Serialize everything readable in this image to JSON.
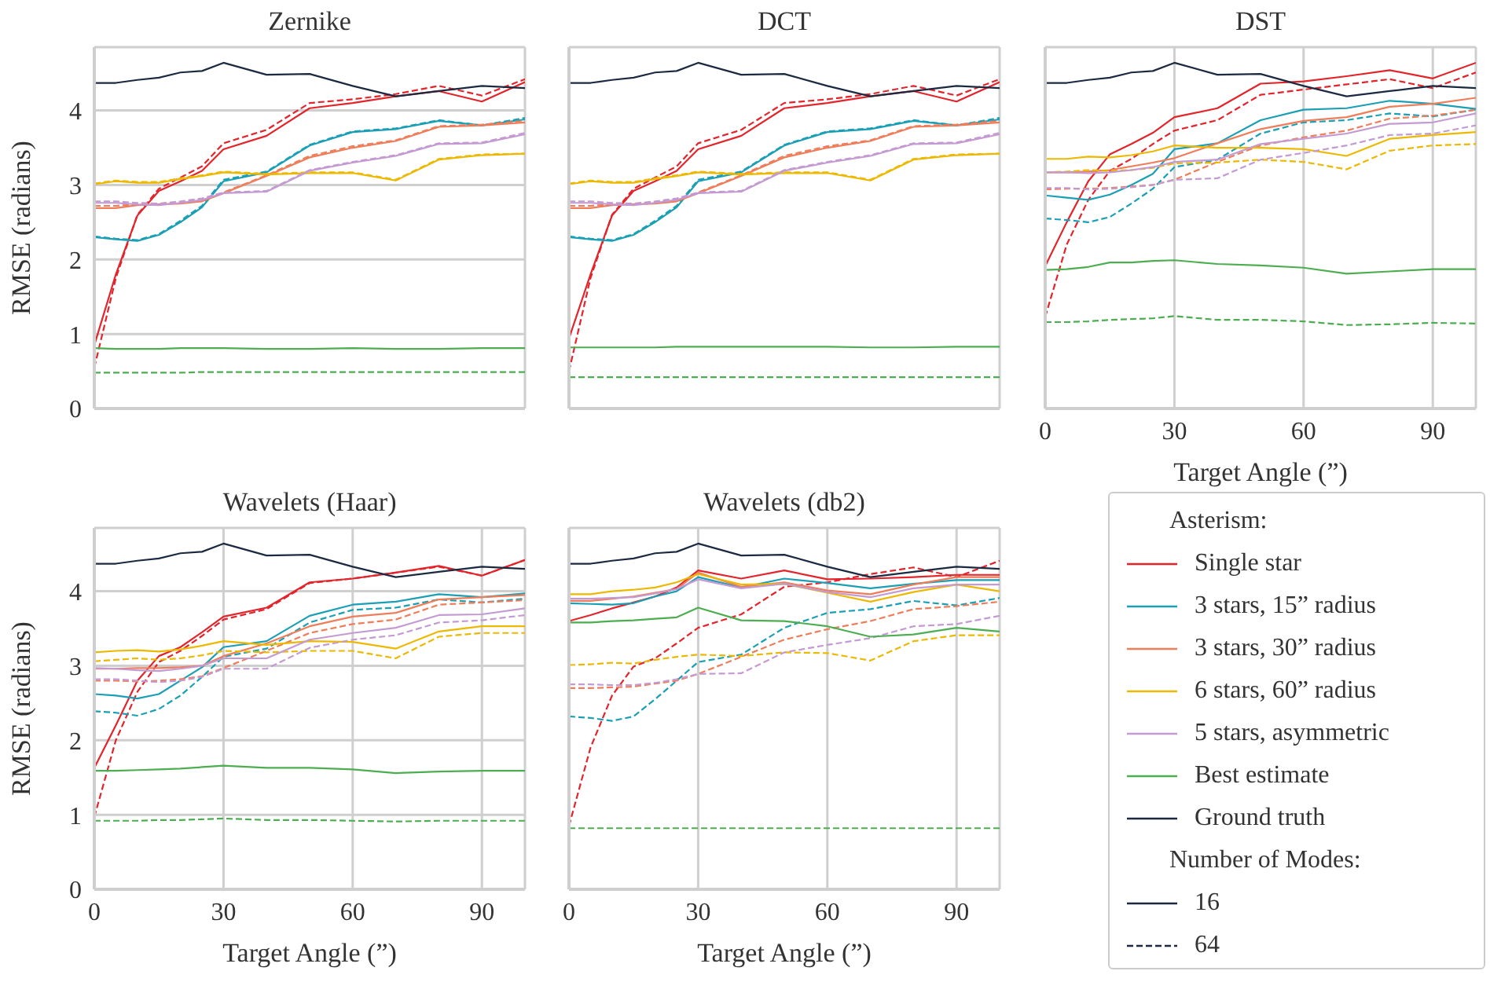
{
  "chart_data": [
    {
      "type": "line",
      "title": "Zernike",
      "ylabel": "RMSE (radians)",
      "x": [
        0,
        5,
        10,
        15,
        20,
        25,
        30,
        40,
        50,
        60,
        70,
        80,
        90,
        100
      ],
      "xlim": [
        0,
        100
      ],
      "xticks": [
        0,
        30,
        60,
        90
      ],
      "ylim": [
        0,
        4.85
      ],
      "yticks": [
        0,
        1,
        2,
        3,
        4
      ],
      "grid": true,
      "tick_labels": "y",
      "series": [
        {
          "color": "#e3242b",
          "line_style": "solid",
          "values": [
            0.85,
            1.8,
            2.59,
            2.92,
            3.05,
            3.19,
            3.48,
            3.66,
            4.03,
            4.1,
            4.19,
            4.26,
            4.12,
            4.38
          ]
        },
        {
          "color": "#e3242b",
          "line_style": "dashed",
          "values": [
            0.55,
            1.75,
            2.6,
            2.95,
            3.1,
            3.25,
            3.56,
            3.74,
            4.1,
            4.15,
            4.22,
            4.33,
            4.2,
            4.42
          ]
        },
        {
          "color": "#1a9fb5",
          "line_style": "solid",
          "values": [
            2.3,
            2.27,
            2.25,
            2.33,
            2.5,
            2.7,
            3.05,
            3.17,
            3.53,
            3.71,
            3.75,
            3.86,
            3.8,
            3.88
          ]
        },
        {
          "color": "#1a9fb5",
          "line_style": "dashed",
          "values": [
            2.31,
            2.28,
            2.26,
            2.34,
            2.52,
            2.72,
            3.07,
            3.18,
            3.54,
            3.72,
            3.76,
            3.87,
            3.8,
            3.9
          ]
        },
        {
          "color": "#ef7d5a",
          "line_style": "solid",
          "values": [
            2.69,
            2.69,
            2.73,
            2.74,
            2.75,
            2.78,
            2.89,
            3.12,
            3.37,
            3.5,
            3.59,
            3.78,
            3.8,
            3.84
          ]
        },
        {
          "color": "#ef7d5a",
          "line_style": "dashed",
          "values": [
            2.72,
            2.72,
            2.74,
            2.75,
            2.77,
            2.8,
            2.9,
            3.13,
            3.39,
            3.52,
            3.6,
            3.79,
            3.81,
            3.86
          ]
        },
        {
          "color": "#ecb800",
          "line_style": "solid",
          "values": [
            3.01,
            3.05,
            3.03,
            3.03,
            3.08,
            3.12,
            3.17,
            3.14,
            3.16,
            3.16,
            3.06,
            3.34,
            3.4,
            3.42
          ]
        },
        {
          "color": "#ecb800",
          "line_style": "dashed",
          "values": [
            3.02,
            3.06,
            3.04,
            3.04,
            3.09,
            3.13,
            3.18,
            3.15,
            3.17,
            3.17,
            3.07,
            3.35,
            3.41,
            3.42
          ]
        },
        {
          "color": "#c49ad2",
          "line_style": "solid",
          "values": [
            2.76,
            2.76,
            2.74,
            2.73,
            2.76,
            2.8,
            2.89,
            2.91,
            3.19,
            3.3,
            3.39,
            3.55,
            3.56,
            3.68
          ]
        },
        {
          "color": "#c49ad2",
          "line_style": "dashed",
          "values": [
            2.78,
            2.78,
            2.76,
            2.75,
            2.78,
            2.82,
            2.9,
            2.92,
            3.2,
            3.31,
            3.4,
            3.56,
            3.57,
            3.7
          ]
        },
        {
          "color": "#4cae50",
          "line_style": "solid",
          "values": [
            0.81,
            0.8,
            0.8,
            0.8,
            0.81,
            0.81,
            0.81,
            0.8,
            0.8,
            0.81,
            0.8,
            0.8,
            0.81,
            0.81
          ]
        },
        {
          "color": "#4cae50",
          "line_style": "dashed",
          "values": [
            0.48,
            0.48,
            0.48,
            0.48,
            0.48,
            0.49,
            0.49,
            0.49,
            0.49,
            0.49,
            0.49,
            0.49,
            0.49,
            0.49
          ]
        },
        {
          "color": "#1b2a41",
          "line_style": "solid",
          "values": [
            4.37,
            4.37,
            4.41,
            4.44,
            4.51,
            4.53,
            4.64,
            4.48,
            4.49,
            4.33,
            4.19,
            4.26,
            4.33,
            4.3
          ]
        }
      ]
    },
    {
      "type": "line",
      "title": "DCT",
      "x": [
        0,
        5,
        10,
        15,
        20,
        25,
        30,
        40,
        50,
        60,
        70,
        80,
        90,
        100
      ],
      "xlim": [
        0,
        100
      ],
      "xticks": [
        0,
        30,
        60,
        90
      ],
      "ylim": [
        0,
        4.85
      ],
      "yticks": [
        0,
        1,
        2,
        3,
        4
      ],
      "grid": true,
      "tick_labels": false,
      "series": [
        {
          "color": "#e3242b",
          "line_style": "solid",
          "values": [
            0.94,
            1.8,
            2.59,
            2.92,
            3.05,
            3.19,
            3.48,
            3.66,
            4.03,
            4.1,
            4.19,
            4.26,
            4.12,
            4.38
          ]
        },
        {
          "color": "#e3242b",
          "line_style": "dashed",
          "values": [
            0.5,
            1.75,
            2.6,
            2.95,
            3.1,
            3.25,
            3.56,
            3.74,
            4.1,
            4.15,
            4.22,
            4.33,
            4.2,
            4.42
          ]
        },
        {
          "color": "#1a9fb5",
          "line_style": "solid",
          "values": [
            2.3,
            2.27,
            2.25,
            2.33,
            2.5,
            2.7,
            3.05,
            3.17,
            3.53,
            3.71,
            3.75,
            3.86,
            3.8,
            3.88
          ]
        },
        {
          "color": "#1a9fb5",
          "line_style": "dashed",
          "values": [
            2.31,
            2.28,
            2.26,
            2.34,
            2.52,
            2.72,
            3.07,
            3.18,
            3.54,
            3.72,
            3.76,
            3.87,
            3.8,
            3.9
          ]
        },
        {
          "color": "#ef7d5a",
          "line_style": "solid",
          "values": [
            2.69,
            2.69,
            2.73,
            2.74,
            2.75,
            2.78,
            2.89,
            3.12,
            3.37,
            3.5,
            3.59,
            3.78,
            3.8,
            3.84
          ]
        },
        {
          "color": "#ef7d5a",
          "line_style": "dashed",
          "values": [
            2.72,
            2.72,
            2.74,
            2.75,
            2.77,
            2.8,
            2.9,
            3.13,
            3.39,
            3.52,
            3.6,
            3.79,
            3.81,
            3.86
          ]
        },
        {
          "color": "#ecb800",
          "line_style": "solid",
          "values": [
            3.01,
            3.05,
            3.03,
            3.03,
            3.08,
            3.12,
            3.17,
            3.14,
            3.16,
            3.16,
            3.06,
            3.34,
            3.4,
            3.42
          ]
        },
        {
          "color": "#ecb800",
          "line_style": "dashed",
          "values": [
            3.02,
            3.06,
            3.04,
            3.04,
            3.09,
            3.13,
            3.18,
            3.15,
            3.17,
            3.17,
            3.07,
            3.35,
            3.41,
            3.42
          ]
        },
        {
          "color": "#c49ad2",
          "line_style": "solid",
          "values": [
            2.76,
            2.76,
            2.74,
            2.73,
            2.76,
            2.8,
            2.89,
            2.91,
            3.19,
            3.3,
            3.39,
            3.55,
            3.56,
            3.68
          ]
        },
        {
          "color": "#c49ad2",
          "line_style": "dashed",
          "values": [
            2.78,
            2.78,
            2.76,
            2.75,
            2.78,
            2.82,
            2.9,
            2.92,
            3.2,
            3.31,
            3.4,
            3.56,
            3.57,
            3.7
          ]
        },
        {
          "color": "#4cae50",
          "line_style": "solid",
          "values": [
            0.82,
            0.82,
            0.82,
            0.82,
            0.82,
            0.83,
            0.83,
            0.83,
            0.83,
            0.83,
            0.82,
            0.82,
            0.83,
            0.83
          ]
        },
        {
          "color": "#4cae50",
          "line_style": "dashed",
          "values": [
            0.42,
            0.42,
            0.42,
            0.42,
            0.42,
            0.42,
            0.42,
            0.42,
            0.42,
            0.42,
            0.42,
            0.42,
            0.42,
            0.42
          ]
        },
        {
          "color": "#1b2a41",
          "line_style": "solid",
          "values": [
            4.37,
            4.37,
            4.41,
            4.44,
            4.51,
            4.53,
            4.64,
            4.48,
            4.49,
            4.33,
            4.19,
            4.26,
            4.33,
            4.3
          ]
        }
      ]
    },
    {
      "type": "line",
      "title": "DST",
      "xlabel": "Target Angle (”)",
      "x": [
        0,
        5,
        10,
        15,
        20,
        25,
        30,
        40,
        50,
        60,
        70,
        80,
        90,
        100
      ],
      "xlim": [
        0,
        100
      ],
      "xticks": [
        0,
        30,
        60,
        90
      ],
      "ylim": [
        0,
        4.85
      ],
      "yticks": [
        0,
        1,
        2,
        3,
        4
      ],
      "grid": true,
      "tick_labels": "x",
      "series": [
        {
          "color": "#e3242b",
          "line_style": "solid",
          "values": [
            1.91,
            2.5,
            3.05,
            3.41,
            3.55,
            3.7,
            3.91,
            4.03,
            4.36,
            4.39,
            4.46,
            4.54,
            4.43,
            4.64
          ]
        },
        {
          "color": "#e3242b",
          "line_style": "dashed",
          "values": [
            1.23,
            2.2,
            2.8,
            3.19,
            3.35,
            3.55,
            3.73,
            3.87,
            4.21,
            4.28,
            4.35,
            4.42,
            4.3,
            4.51
          ]
        },
        {
          "color": "#1a9fb5",
          "line_style": "solid",
          "values": [
            2.86,
            2.83,
            2.8,
            2.87,
            3.0,
            3.15,
            3.48,
            3.56,
            3.87,
            4.01,
            4.03,
            4.13,
            4.09,
            4.02
          ]
        },
        {
          "color": "#1a9fb5",
          "line_style": "dashed",
          "values": [
            2.55,
            2.53,
            2.5,
            2.57,
            2.75,
            2.95,
            3.24,
            3.34,
            3.69,
            3.84,
            3.87,
            3.96,
            3.92,
            4.01
          ]
        },
        {
          "color": "#ef7d5a",
          "line_style": "solid",
          "values": [
            3.17,
            3.17,
            3.18,
            3.2,
            3.25,
            3.3,
            3.36,
            3.56,
            3.75,
            3.86,
            3.91,
            4.05,
            4.09,
            4.17
          ]
        },
        {
          "color": "#ef7d5a",
          "line_style": "dashed",
          "values": [
            2.94,
            2.95,
            2.95,
            2.96,
            2.98,
            3.0,
            3.07,
            3.31,
            3.53,
            3.64,
            3.73,
            3.89,
            3.93,
            4.01
          ]
        },
        {
          "color": "#ecb800",
          "line_style": "solid",
          "values": [
            3.35,
            3.35,
            3.38,
            3.37,
            3.4,
            3.45,
            3.53,
            3.5,
            3.5,
            3.48,
            3.39,
            3.62,
            3.67,
            3.71
          ]
        },
        {
          "color": "#ecb800",
          "line_style": "dashed",
          "values": [
            3.17,
            3.18,
            3.2,
            3.19,
            3.2,
            3.23,
            3.29,
            3.3,
            3.34,
            3.31,
            3.21,
            3.46,
            3.53,
            3.55
          ]
        },
        {
          "color": "#c49ad2",
          "line_style": "solid",
          "values": [
            3.17,
            3.17,
            3.16,
            3.17,
            3.2,
            3.24,
            3.31,
            3.34,
            3.55,
            3.62,
            3.69,
            3.82,
            3.84,
            3.96
          ]
        },
        {
          "color": "#c49ad2",
          "line_style": "dashed",
          "values": [
            2.96,
            2.96,
            2.94,
            2.95,
            2.97,
            3.0,
            3.07,
            3.09,
            3.34,
            3.43,
            3.53,
            3.67,
            3.69,
            3.8
          ]
        },
        {
          "color": "#4cae50",
          "line_style": "solid",
          "values": [
            1.86,
            1.87,
            1.9,
            1.96,
            1.96,
            1.98,
            1.99,
            1.94,
            1.92,
            1.89,
            1.81,
            1.84,
            1.87,
            1.87
          ]
        },
        {
          "color": "#4cae50",
          "line_style": "dashed",
          "values": [
            1.16,
            1.16,
            1.17,
            1.19,
            1.2,
            1.21,
            1.24,
            1.19,
            1.19,
            1.17,
            1.12,
            1.13,
            1.15,
            1.14
          ]
        },
        {
          "color": "#1b2a41",
          "line_style": "solid",
          "values": [
            4.37,
            4.37,
            4.41,
            4.44,
            4.51,
            4.53,
            4.64,
            4.48,
            4.49,
            4.33,
            4.19,
            4.26,
            4.33,
            4.3
          ]
        }
      ]
    },
    {
      "type": "line",
      "title": "Wavelets (Haar)",
      "xlabel": "Target Angle (”)",
      "ylabel": "RMSE (radians)",
      "x": [
        0,
        5,
        10,
        15,
        20,
        25,
        30,
        40,
        50,
        60,
        70,
        80,
        90,
        100
      ],
      "xlim": [
        0,
        100
      ],
      "xticks": [
        0,
        30,
        60,
        90
      ],
      "ylim": [
        0,
        4.85
      ],
      "yticks": [
        0,
        1,
        2,
        3,
        4
      ],
      "grid": true,
      "series": [
        {
          "color": "#e3242b",
          "line_style": "solid",
          "values": [
            1.63,
            2.2,
            2.8,
            3.13,
            3.25,
            3.45,
            3.66,
            3.78,
            4.12,
            4.17,
            4.25,
            4.34,
            4.21,
            4.42
          ]
        },
        {
          "color": "#e3242b",
          "line_style": "dashed",
          "values": [
            0.97,
            2.0,
            2.65,
            3.05,
            3.2,
            3.4,
            3.62,
            3.76,
            4.11,
            4.17,
            4.25,
            4.33,
            4.21,
            4.42
          ]
        },
        {
          "color": "#1a9fb5",
          "line_style": "solid",
          "values": [
            2.62,
            2.6,
            2.56,
            2.62,
            2.8,
            2.98,
            3.25,
            3.33,
            3.67,
            3.82,
            3.86,
            3.96,
            3.92,
            3.97
          ]
        },
        {
          "color": "#1a9fb5",
          "line_style": "dashed",
          "values": [
            2.39,
            2.37,
            2.33,
            2.42,
            2.6,
            2.85,
            3.12,
            3.23,
            3.58,
            3.75,
            3.78,
            3.89,
            3.85,
            3.9
          ]
        },
        {
          "color": "#ef7d5a",
          "line_style": "solid",
          "values": [
            2.96,
            2.96,
            2.97,
            2.97,
            2.98,
            3.0,
            3.13,
            3.3,
            3.53,
            3.66,
            3.71,
            3.89,
            3.92,
            3.95
          ]
        },
        {
          "color": "#ef7d5a",
          "line_style": "dashed",
          "values": [
            2.8,
            2.8,
            2.79,
            2.8,
            2.82,
            2.86,
            2.97,
            3.2,
            3.44,
            3.56,
            3.62,
            3.82,
            3.85,
            3.88
          ]
        },
        {
          "color": "#ecb800",
          "line_style": "solid",
          "values": [
            3.18,
            3.2,
            3.21,
            3.19,
            3.22,
            3.27,
            3.33,
            3.28,
            3.33,
            3.32,
            3.23,
            3.46,
            3.53,
            3.53
          ]
        },
        {
          "color": "#ecb800",
          "line_style": "dashed",
          "values": [
            3.06,
            3.08,
            3.1,
            3.08,
            3.1,
            3.14,
            3.2,
            3.18,
            3.2,
            3.2,
            3.1,
            3.39,
            3.44,
            3.44
          ]
        },
        {
          "color": "#c49ad2",
          "line_style": "solid",
          "values": [
            2.97,
            2.96,
            2.94,
            2.93,
            2.96,
            3.0,
            3.1,
            3.1,
            3.35,
            3.44,
            3.51,
            3.68,
            3.69,
            3.77
          ]
        },
        {
          "color": "#c49ad2",
          "line_style": "dashed",
          "values": [
            2.82,
            2.82,
            2.8,
            2.78,
            2.8,
            2.85,
            2.96,
            2.96,
            3.24,
            3.35,
            3.41,
            3.58,
            3.61,
            3.68
          ]
        },
        {
          "color": "#4cae50",
          "line_style": "solid",
          "values": [
            1.59,
            1.59,
            1.6,
            1.61,
            1.62,
            1.64,
            1.66,
            1.63,
            1.63,
            1.61,
            1.56,
            1.58,
            1.59,
            1.59
          ]
        },
        {
          "color": "#4cae50",
          "line_style": "dashed",
          "values": [
            0.92,
            0.92,
            0.92,
            0.93,
            0.93,
            0.94,
            0.95,
            0.93,
            0.93,
            0.92,
            0.91,
            0.92,
            0.92,
            0.92
          ]
        },
        {
          "color": "#1b2a41",
          "line_style": "solid",
          "values": [
            4.37,
            4.37,
            4.41,
            4.44,
            4.51,
            4.53,
            4.64,
            4.48,
            4.49,
            4.33,
            4.19,
            4.26,
            4.33,
            4.3
          ]
        }
      ]
    },
    {
      "type": "line",
      "title": "Wavelets (db2)",
      "xlabel": "Target Angle (”)",
      "x": [
        0,
        5,
        10,
        15,
        20,
        25,
        30,
        40,
        50,
        60,
        70,
        80,
        90,
        100
      ],
      "xlim": [
        0,
        100
      ],
      "xticks": [
        0,
        30,
        60,
        90
      ],
      "ylim": [
        0,
        4.85
      ],
      "yticks": [
        0,
        1,
        2,
        3,
        4
      ],
      "grid": true,
      "tick_labels": "x",
      "legend": "right",
      "legend_title": "Asterism:",
      "annotations": [
        "Number of Modes:",
        "16",
        "64"
      ],
      "series": [
        {
          "name": "Single star",
          "color": "#e3242b",
          "line_style": "solid",
          "values": [
            3.6,
            3.68,
            3.77,
            3.85,
            3.93,
            4.05,
            4.28,
            4.17,
            4.28,
            4.16,
            4.17,
            4.19,
            4.22,
            4.22
          ]
        },
        {
          "color": "#e3242b",
          "line_style": "dashed",
          "values": [
            0.85,
            1.9,
            2.6,
            2.99,
            3.1,
            3.3,
            3.51,
            3.69,
            4.06,
            4.12,
            4.23,
            4.32,
            4.19,
            4.41
          ]
        },
        {
          "name": "3 stars, 15” radius",
          "color": "#1a9fb5",
          "line_style": "solid",
          "values": [
            3.84,
            3.83,
            3.82,
            3.84,
            3.93,
            4.0,
            4.19,
            4.05,
            4.17,
            4.11,
            4.04,
            4.1,
            4.15,
            4.15
          ]
        },
        {
          "color": "#1a9fb5",
          "line_style": "dashed",
          "values": [
            2.32,
            2.3,
            2.26,
            2.32,
            2.55,
            2.8,
            3.05,
            3.15,
            3.51,
            3.71,
            3.76,
            3.87,
            3.81,
            3.91
          ]
        },
        {
          "name": "3 stars, 30” radius",
          "color": "#ef7d5a",
          "line_style": "solid",
          "values": [
            3.87,
            3.87,
            3.9,
            3.93,
            3.98,
            4.03,
            4.25,
            4.06,
            4.12,
            4.01,
            3.96,
            4.09,
            4.19,
            4.19
          ]
        },
        {
          "color": "#ef7d5a",
          "line_style": "dashed",
          "values": [
            2.7,
            2.7,
            2.71,
            2.72,
            2.76,
            2.8,
            2.89,
            3.12,
            3.35,
            3.49,
            3.6,
            3.76,
            3.8,
            3.86
          ]
        },
        {
          "name": "6 stars, 60” radius",
          "color": "#ecb800",
          "line_style": "solid",
          "values": [
            3.96,
            3.96,
            4.0,
            4.02,
            4.05,
            4.12,
            4.23,
            4.09,
            4.1,
            3.98,
            3.86,
            3.99,
            4.09,
            4.0
          ]
        },
        {
          "color": "#ecb800",
          "line_style": "dashed",
          "values": [
            3.01,
            3.02,
            3.04,
            3.03,
            3.08,
            3.12,
            3.15,
            3.13,
            3.18,
            3.17,
            3.07,
            3.33,
            3.41,
            3.41
          ]
        },
        {
          "name": "5 stars, asymmetric",
          "color": "#c49ad2",
          "line_style": "solid",
          "values": [
            3.9,
            3.9,
            3.91,
            3.92,
            3.97,
            4.03,
            4.16,
            4.04,
            4.1,
            3.99,
            3.92,
            4.04,
            4.09,
            4.09
          ]
        },
        {
          "color": "#c49ad2",
          "line_style": "dashed",
          "values": [
            2.75,
            2.75,
            2.74,
            2.74,
            2.77,
            2.82,
            2.89,
            2.9,
            3.18,
            3.28,
            3.37,
            3.53,
            3.56,
            3.67
          ]
        },
        {
          "name": "Best estimate",
          "color": "#4cae50",
          "line_style": "solid",
          "values": [
            3.58,
            3.58,
            3.6,
            3.61,
            3.63,
            3.65,
            3.78,
            3.61,
            3.6,
            3.53,
            3.39,
            3.42,
            3.51,
            3.46
          ]
        },
        {
          "color": "#4cae50",
          "line_style": "dashed",
          "values": [
            0.82,
            0.82,
            0.82,
            0.82,
            0.82,
            0.82,
            0.82,
            0.82,
            0.82,
            0.82,
            0.82,
            0.82,
            0.82,
            0.82
          ]
        },
        {
          "name": "Ground truth",
          "color": "#1b2a41",
          "line_style": "solid",
          "values": [
            4.37,
            4.37,
            4.41,
            4.44,
            4.51,
            4.53,
            4.64,
            4.48,
            4.49,
            4.33,
            4.19,
            4.26,
            4.33,
            4.3
          ]
        }
      ]
    }
  ]
}
